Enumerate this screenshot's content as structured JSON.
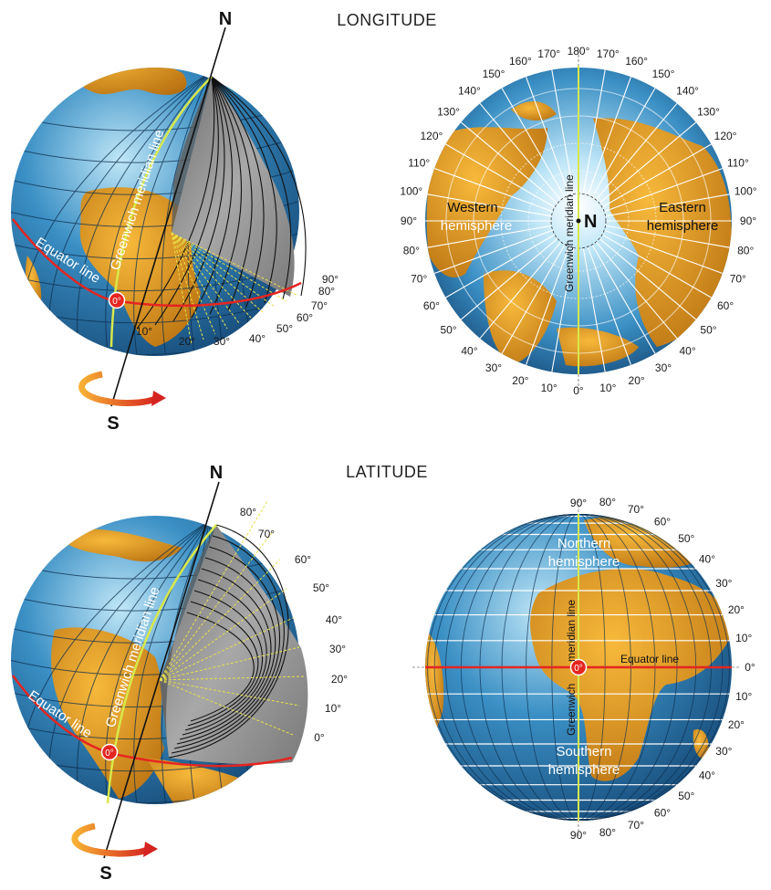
{
  "longitude": {
    "title": "LONGITUDE",
    "north": "N",
    "south": "S",
    "greenwich": "Greenwich meridian line",
    "equator": "Equator line",
    "zero": "0°",
    "side_ticks": [
      "10°",
      "20°",
      "30°",
      "40°",
      "50°",
      "60°",
      "70°",
      "80°",
      "90°"
    ],
    "map_north": "N",
    "western": [
      "Western",
      "hemisphere"
    ],
    "eastern": [
      "Eastern",
      "hemisphere"
    ],
    "map_greenwich": "Greenwich meridian line",
    "ring_left": [
      "0°",
      "10°",
      "20°",
      "30°",
      "40°",
      "50°",
      "60°",
      "70°",
      "80°",
      "90°",
      "100°",
      "110°",
      "120°",
      "130°",
      "140°",
      "150°",
      "160°",
      "170°",
      "180°"
    ],
    "ring_right": [
      "10°",
      "20°",
      "30°",
      "40°",
      "50°",
      "60°",
      "70°",
      "80°",
      "90°",
      "100°",
      "110°",
      "120°",
      "130°",
      "140°",
      "150°",
      "160°",
      "170°"
    ]
  },
  "latitude": {
    "title": "LATITUDE",
    "north": "N",
    "south": "S",
    "greenwich": "Greenwich meridian line",
    "equator": "Equator line",
    "zero": "0°",
    "side_ticks": [
      "0°",
      "10°",
      "20°",
      "30°",
      "40°",
      "50°",
      "60°",
      "70°",
      "80°"
    ],
    "northern": [
      "Northern",
      "hemisphere"
    ],
    "southern": [
      "Southern",
      "hemisphere"
    ],
    "map_equator": "Equator line",
    "map_greenwich_a": "Greenwich",
    "map_greenwich_b": "meridian line",
    "ring_top": [
      "90°",
      "80°",
      "70°",
      "60°",
      "50°",
      "40°",
      "30°",
      "20°",
      "10°",
      "0°"
    ],
    "ring_bottom": [
      "10°",
      "20°",
      "30°",
      "40°",
      "50°",
      "60°",
      "70°",
      "80°",
      "90°"
    ]
  },
  "colors": {
    "ocean_light": "#bfe6f7",
    "ocean": "#3a8fc4",
    "ocean_dark": "#164a78",
    "land": "#f0a623",
    "land_dark": "#b87010",
    "equator": "#e52520",
    "meridian": "#d8e84a",
    "cutaway": "#8c8c8c"
  }
}
